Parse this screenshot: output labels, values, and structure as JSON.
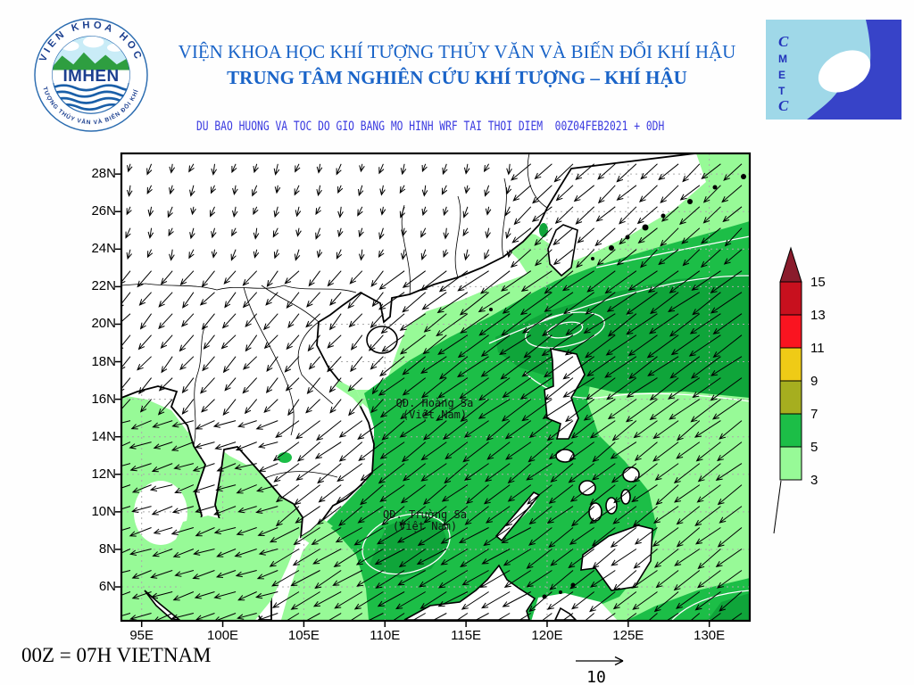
{
  "header": {
    "line1": "VIỆN KHOA HỌC KHÍ TƯỢNG THỦY VĂN VÀ BIẾN ĐỔI KHÍ HẬU",
    "line2": "TRUNG TÂM NGHIÊN CỨU KHÍ TƯỢNG – KHÍ HẬU",
    "subtitle": "DU BAO HUONG VA TOC DO GIO BANG MO HINH WRF TAI THOI DIEM  00Z04FEB2021 + 0DH"
  },
  "logos": {
    "imhen": {
      "acronym": "IMHEN",
      "ring_top_text": "VIEN KHOA HOC",
      "ring_bottom_text": "KHÍ TƯỢNG THỦY VĂN VÀ BIẾN ĐỔI KHÍ HẬU"
    },
    "cmetc": {
      "letters": [
        "C",
        "M",
        "E",
        "T",
        "C"
      ]
    }
  },
  "map": {
    "lat_ticks": [
      {
        "label": "28N",
        "value": 28
      },
      {
        "label": "26N",
        "value": 26
      },
      {
        "label": "24N",
        "value": 24
      },
      {
        "label": "22N",
        "value": 22
      },
      {
        "label": "20N",
        "value": 20
      },
      {
        "label": "18N",
        "value": 18
      },
      {
        "label": "16N",
        "value": 16
      },
      {
        "label": "14N",
        "value": 14
      },
      {
        "label": "12N",
        "value": 12
      },
      {
        "label": "10N",
        "value": 10
      },
      {
        "label": "8N",
        "value": 8
      },
      {
        "label": "6N",
        "value": 6
      }
    ],
    "lon_ticks": [
      {
        "label": "95E",
        "value": 95
      },
      {
        "label": "100E",
        "value": 100
      },
      {
        "label": "105E",
        "value": 105
      },
      {
        "label": "110E",
        "value": 110
      },
      {
        "label": "115E",
        "value": 115
      },
      {
        "label": "120E",
        "value": 120
      },
      {
        "label": "125E",
        "value": 125
      },
      {
        "label": "130E",
        "value": 130
      }
    ],
    "island_labels": [
      {
        "line1": "QĐ. Hoàng Sa",
        "line2": "(Việt Nam)",
        "lon": 113.1,
        "lat": 15.8
      },
      {
        "line1": "QĐ. Trường Sa",
        "line2": "(Việt Nam)",
        "lon": 112.5,
        "lat": 9.8
      }
    ]
  },
  "legend": {
    "levels": [
      3,
      5,
      7,
      9,
      11,
      13,
      15
    ],
    "band_colors": [
      "#97FA97",
      "#1CBE47",
      "#A6AE1F",
      "#EFCB16",
      "#FA1420",
      "#C8101E"
    ],
    "over_color": "#8A1C2C"
  },
  "footer": {
    "note": "00Z = 07H VIETNAM",
    "scale_label": "10"
  },
  "chart_data": {
    "type": "map",
    "subtype": "wind-vector-field-with-speed-shading",
    "model": "WRF",
    "valid_time": "00Z04FEB2021 + 0DH",
    "lon_range": [
      93.75,
      132.8
    ],
    "lat_range": [
      4.1,
      29.1
    ],
    "grid_dashed": true,
    "shading_levels": [
      3,
      5,
      7,
      9,
      11,
      13,
      15
    ],
    "shading_colors": [
      "#97FA97",
      "#1CBE47",
      "#0FA53A"
    ],
    "reference_vector": 10,
    "wind_regions": [
      {
        "name": "china-inland",
        "lat_min": 23.5,
        "lat_max": 29.2,
        "lon_min": 93.5,
        "lon_max": 118.5,
        "u": -0.6,
        "v": -1.9
      },
      {
        "name": "east-china-sea",
        "lat_min": 23.5,
        "lat_max": 29.2,
        "lon_min": 118.5,
        "lon_max": 133,
        "u": -3.8,
        "v": -3.4
      },
      {
        "name": "andaman-gulf-thailand",
        "lat_min": 4,
        "lat_max": 16,
        "lon_min": 93.5,
        "lon_max": 104,
        "u": -4.2,
        "v": -1.4
      },
      {
        "name": "tonkin-indochina",
        "lat_min": 16,
        "lat_max": 23.5,
        "lon_min": 93.5,
        "lon_max": 110.5,
        "u": -2.6,
        "v": -3.0
      },
      {
        "name": "ne-monsoon-core",
        "lat_min": 15.5,
        "lat_max": 23.5,
        "lon_min": 115,
        "lon_max": 133,
        "u": -6.2,
        "v": -4.4
      },
      {
        "name": "south-scs",
        "lat_min": 4,
        "lat_max": 10,
        "lon_min": 104,
        "lon_max": 119,
        "u": -5.8,
        "v": -3.4
      },
      {
        "name": "central-scs",
        "lat_min": 4,
        "lat_max": 29.2,
        "lon_min": 93.5,
        "lon_max": 133,
        "u": -5.0,
        "v": -3.8
      }
    ]
  }
}
